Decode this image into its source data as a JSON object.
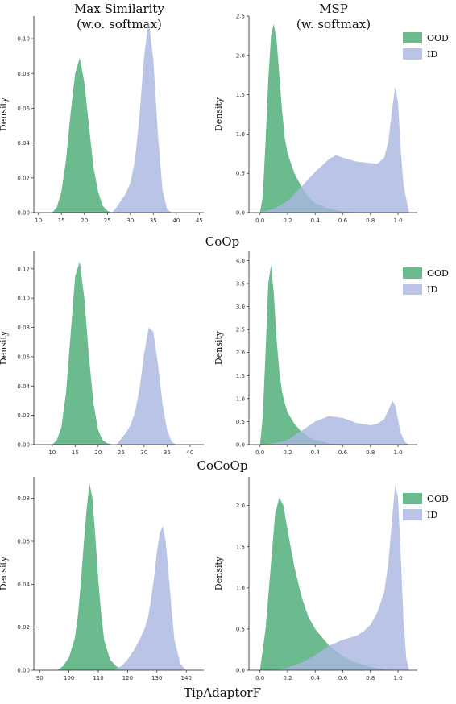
{
  "column_titles": {
    "left": [
      "Max Similarity",
      "(w.o. softmax)"
    ],
    "right": [
      "MSP",
      "(w. softmax)"
    ]
  },
  "legend": [
    "OOD",
    "ID"
  ],
  "colors": {
    "ood": "#5fb585",
    "id": "#a9b7e1"
  },
  "chart_data": [
    {
      "type": "area",
      "method": "CoOp",
      "panel": "Max Similarity (w.o. softmax)",
      "ylabel": "Density",
      "xlim": [
        9,
        46
      ],
      "ylim": [
        0,
        0.113
      ],
      "xticks": [
        "10",
        "15",
        "20",
        "25",
        "30",
        "35",
        "40",
        "45"
      ],
      "yticks": [
        "0.00",
        "0.02",
        "0.04",
        "0.06",
        "0.08",
        "0.10"
      ],
      "series": [
        {
          "name": "OOD",
          "x": [
            13,
            14,
            15,
            16,
            17,
            18,
            19,
            20,
            21,
            22,
            23,
            24,
            25,
            26
          ],
          "y": [
            0.0,
            0.003,
            0.012,
            0.03,
            0.057,
            0.08,
            0.089,
            0.075,
            0.05,
            0.026,
            0.012,
            0.004,
            0.001,
            0.0
          ]
        },
        {
          "name": "ID",
          "x": [
            26,
            27,
            28,
            29,
            30,
            31,
            32,
            33,
            34,
            35,
            36,
            37,
            38,
            39
          ],
          "y": [
            0.0,
            0.003,
            0.007,
            0.011,
            0.017,
            0.03,
            0.056,
            0.09,
            0.11,
            0.088,
            0.045,
            0.013,
            0.002,
            0.0
          ]
        }
      ]
    },
    {
      "type": "area",
      "method": "CoOp",
      "panel": "MSP (w. softmax)",
      "ylabel": "Density",
      "xlim": [
        -0.08,
        1.14
      ],
      "ylim": [
        0,
        2.5
      ],
      "xticks": [
        "0.0",
        "0.2",
        "0.4",
        "0.6",
        "0.8",
        "1.0"
      ],
      "yticks": [
        "0.0",
        "0.5",
        "1.0",
        "1.5",
        "2.0",
        "2.5"
      ],
      "series": [
        {
          "name": "OOD",
          "x": [
            0.0,
            0.02,
            0.04,
            0.06,
            0.08,
            0.1,
            0.12,
            0.14,
            0.16,
            0.18,
            0.2,
            0.25,
            0.3,
            0.35,
            0.4,
            0.5,
            0.6,
            0.7
          ],
          "y": [
            0.0,
            0.2,
            0.9,
            1.7,
            2.25,
            2.4,
            2.2,
            1.75,
            1.3,
            0.95,
            0.75,
            0.5,
            0.33,
            0.2,
            0.12,
            0.05,
            0.015,
            0.0
          ]
        },
        {
          "name": "ID",
          "x": [
            0.0,
            0.1,
            0.2,
            0.3,
            0.4,
            0.5,
            0.55,
            0.6,
            0.7,
            0.8,
            0.85,
            0.9,
            0.93,
            0.96,
            0.98,
            1.0,
            1.02,
            1.04,
            1.08
          ],
          "y": [
            0.0,
            0.05,
            0.15,
            0.33,
            0.52,
            0.68,
            0.73,
            0.7,
            0.65,
            0.63,
            0.62,
            0.7,
            0.9,
            1.35,
            1.6,
            1.4,
            0.8,
            0.35,
            0.0
          ]
        }
      ]
    },
    {
      "type": "area",
      "method": "CoCoOp",
      "panel": "Max Similarity (w.o. softmax)",
      "ylabel": "Density",
      "xlim": [
        6,
        43
      ],
      "ylim": [
        0,
        0.132
      ],
      "xticks": [
        "10",
        "15",
        "20",
        "25",
        "30",
        "35",
        "40"
      ],
      "yticks": [
        "0.00",
        "0.02",
        "0.04",
        "0.06",
        "0.08",
        "0.10",
        "0.12"
      ],
      "series": [
        {
          "name": "OOD",
          "x": [
            10,
            11,
            12,
            13,
            14,
            15,
            16,
            17,
            18,
            19,
            20,
            21,
            22,
            23
          ],
          "y": [
            0.0,
            0.003,
            0.012,
            0.035,
            0.075,
            0.115,
            0.125,
            0.1,
            0.06,
            0.028,
            0.01,
            0.003,
            0.001,
            0.0
          ]
        },
        {
          "name": "ID",
          "x": [
            24,
            25,
            26,
            27,
            28,
            29,
            30,
            31,
            32,
            33,
            34,
            35,
            36,
            37
          ],
          "y": [
            0.0,
            0.004,
            0.008,
            0.013,
            0.022,
            0.038,
            0.062,
            0.08,
            0.077,
            0.055,
            0.028,
            0.01,
            0.002,
            0.0
          ]
        }
      ]
    },
    {
      "type": "area",
      "method": "CoCoOp",
      "panel": "MSP (w. softmax)",
      "ylabel": "Density",
      "xlim": [
        -0.08,
        1.14
      ],
      "ylim": [
        0,
        4.2
      ],
      "xticks": [
        "0.0",
        "0.2",
        "0.4",
        "0.6",
        "0.8",
        "1.0"
      ],
      "yticks": [
        "0.0",
        "0.5",
        "1.0",
        "1.5",
        "2.0",
        "2.5",
        "3.0",
        "3.5",
        "4.0"
      ],
      "series": [
        {
          "name": "OOD",
          "x": [
            0.0,
            0.02,
            0.04,
            0.06,
            0.08,
            0.1,
            0.12,
            0.14,
            0.16,
            0.18,
            0.2,
            0.25,
            0.3,
            0.35,
            0.4,
            0.5,
            0.6
          ],
          "y": [
            0.0,
            0.6,
            2.0,
            3.5,
            3.9,
            3.3,
            2.3,
            1.6,
            1.15,
            0.9,
            0.7,
            0.45,
            0.28,
            0.17,
            0.1,
            0.03,
            0.0
          ]
        },
        {
          "name": "ID",
          "x": [
            0.0,
            0.1,
            0.2,
            0.3,
            0.4,
            0.5,
            0.6,
            0.7,
            0.8,
            0.85,
            0.9,
            0.93,
            0.96,
            0.98,
            1.0,
            1.02,
            1.05,
            1.08
          ],
          "y": [
            0.0,
            0.03,
            0.1,
            0.3,
            0.5,
            0.62,
            0.58,
            0.47,
            0.42,
            0.45,
            0.55,
            0.75,
            0.95,
            0.85,
            0.55,
            0.25,
            0.06,
            0.0
          ]
        }
      ]
    },
    {
      "type": "area",
      "method": "TipAdaptorF",
      "panel": "Max Similarity (w.o. softmax)",
      "ylabel": "Density",
      "xlim": [
        88,
        146
      ],
      "ylim": [
        0,
        0.09
      ],
      "xticks": [
        "90",
        "100",
        "110",
        "120",
        "130",
        "140"
      ],
      "yticks": [
        "0.00",
        "0.02",
        "0.04",
        "0.06",
        "0.08"
      ],
      "series": [
        {
          "name": "OOD",
          "x": [
            96,
            98,
            100,
            102,
            103,
            104,
            105,
            106,
            107,
            108,
            109,
            110,
            111,
            112,
            114,
            116,
            118,
            120
          ],
          "y": [
            0.0,
            0.002,
            0.006,
            0.015,
            0.025,
            0.04,
            0.058,
            0.075,
            0.087,
            0.08,
            0.062,
            0.042,
            0.026,
            0.014,
            0.005,
            0.002,
            0.0005,
            0.0
          ]
        },
        {
          "name": "ID",
          "x": [
            115,
            118,
            120,
            122,
            124,
            126,
            127,
            128,
            129,
            130,
            131,
            132,
            133,
            134,
            135,
            136,
            138,
            140
          ],
          "y": [
            0.0,
            0.002,
            0.005,
            0.009,
            0.014,
            0.02,
            0.025,
            0.033,
            0.043,
            0.055,
            0.064,
            0.067,
            0.06,
            0.045,
            0.028,
            0.014,
            0.003,
            0.0
          ]
        }
      ]
    },
    {
      "type": "area",
      "method": "TipAdaptorF",
      "panel": "MSP (w. softmax)",
      "ylabel": "Density",
      "xlim": [
        -0.08,
        1.14
      ],
      "ylim": [
        0,
        2.35
      ],
      "xticks": [
        "0.0",
        "0.2",
        "0.4",
        "0.6",
        "0.8",
        "1.0"
      ],
      "yticks": [
        "0.0",
        "0.5",
        "1.0",
        "1.5",
        "2.0"
      ],
      "series": [
        {
          "name": "OOD",
          "x": [
            0.0,
            0.04,
            0.08,
            0.11,
            0.14,
            0.17,
            0.2,
            0.25,
            0.3,
            0.35,
            0.4,
            0.5,
            0.6,
            0.7,
            0.8,
            0.9,
            1.0
          ],
          "y": [
            0.0,
            0.5,
            1.3,
            1.9,
            2.1,
            2.0,
            1.7,
            1.25,
            0.9,
            0.65,
            0.5,
            0.3,
            0.17,
            0.09,
            0.04,
            0.01,
            0.0
          ]
        },
        {
          "name": "ID",
          "x": [
            0.1,
            0.2,
            0.3,
            0.4,
            0.5,
            0.6,
            0.7,
            0.75,
            0.8,
            0.85,
            0.9,
            0.93,
            0.96,
            0.98,
            1.0,
            1.02,
            1.04,
            1.06,
            1.08
          ],
          "y": [
            0.0,
            0.03,
            0.09,
            0.18,
            0.3,
            0.37,
            0.42,
            0.47,
            0.55,
            0.7,
            0.95,
            1.3,
            1.9,
            2.25,
            2.1,
            1.4,
            0.6,
            0.15,
            0.0
          ]
        }
      ]
    }
  ]
}
